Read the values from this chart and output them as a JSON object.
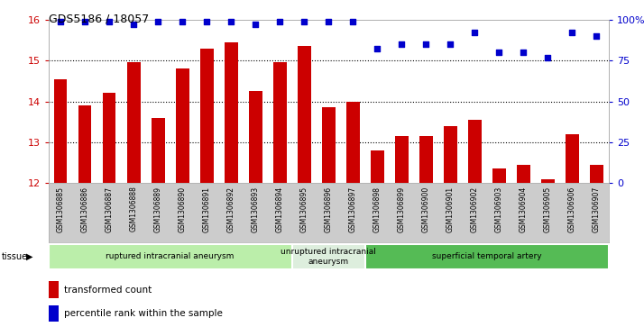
{
  "title": "GDS5186 / 18057",
  "samples": [
    "GSM1306885",
    "GSM1306886",
    "GSM1306887",
    "GSM1306888",
    "GSM1306889",
    "GSM1306890",
    "GSM1306891",
    "GSM1306892",
    "GSM1306893",
    "GSM1306894",
    "GSM1306895",
    "GSM1306896",
    "GSM1306897",
    "GSM1306898",
    "GSM1306899",
    "GSM1306900",
    "GSM1306901",
    "GSM1306902",
    "GSM1306903",
    "GSM1306904",
    "GSM1306905",
    "GSM1306906",
    "GSM1306907"
  ],
  "bar_values": [
    14.55,
    13.9,
    14.22,
    14.95,
    13.6,
    14.8,
    15.3,
    15.45,
    14.25,
    14.95,
    15.35,
    13.85,
    14.0,
    12.8,
    13.15,
    13.15,
    13.4,
    13.55,
    12.35,
    12.45,
    12.1,
    13.2,
    12.45
  ],
  "percentile_values": [
    99,
    99,
    99,
    97,
    99,
    99,
    99,
    99,
    97,
    99,
    99,
    99,
    99,
    82,
    85,
    85,
    85,
    92,
    80,
    80,
    77,
    92,
    90
  ],
  "ymin": 12,
  "ymax": 16,
  "yticks": [
    12,
    13,
    14,
    15,
    16
  ],
  "right_yticks": [
    0,
    25,
    50,
    75,
    100
  ],
  "right_yticklabels": [
    "0",
    "25",
    "50",
    "75",
    "100%"
  ],
  "bar_color": "#cc0000",
  "dot_color": "#0000cc",
  "groups": [
    {
      "label": "ruptured intracranial aneurysm",
      "start": 0,
      "end": 10,
      "color": "#bbeeaa"
    },
    {
      "label": "unruptured intracranial\naneurysm",
      "start": 10,
      "end": 13,
      "color": "#ddeedd"
    },
    {
      "label": "superficial temporal artery",
      "start": 13,
      "end": 23,
      "color": "#55bb55"
    }
  ],
  "tissue_label": "tissue",
  "legend_bar_label": "transformed count",
  "legend_dot_label": "percentile rank within the sample",
  "xticklabel_bg": "#cccccc",
  "plot_bg": "#ffffff"
}
